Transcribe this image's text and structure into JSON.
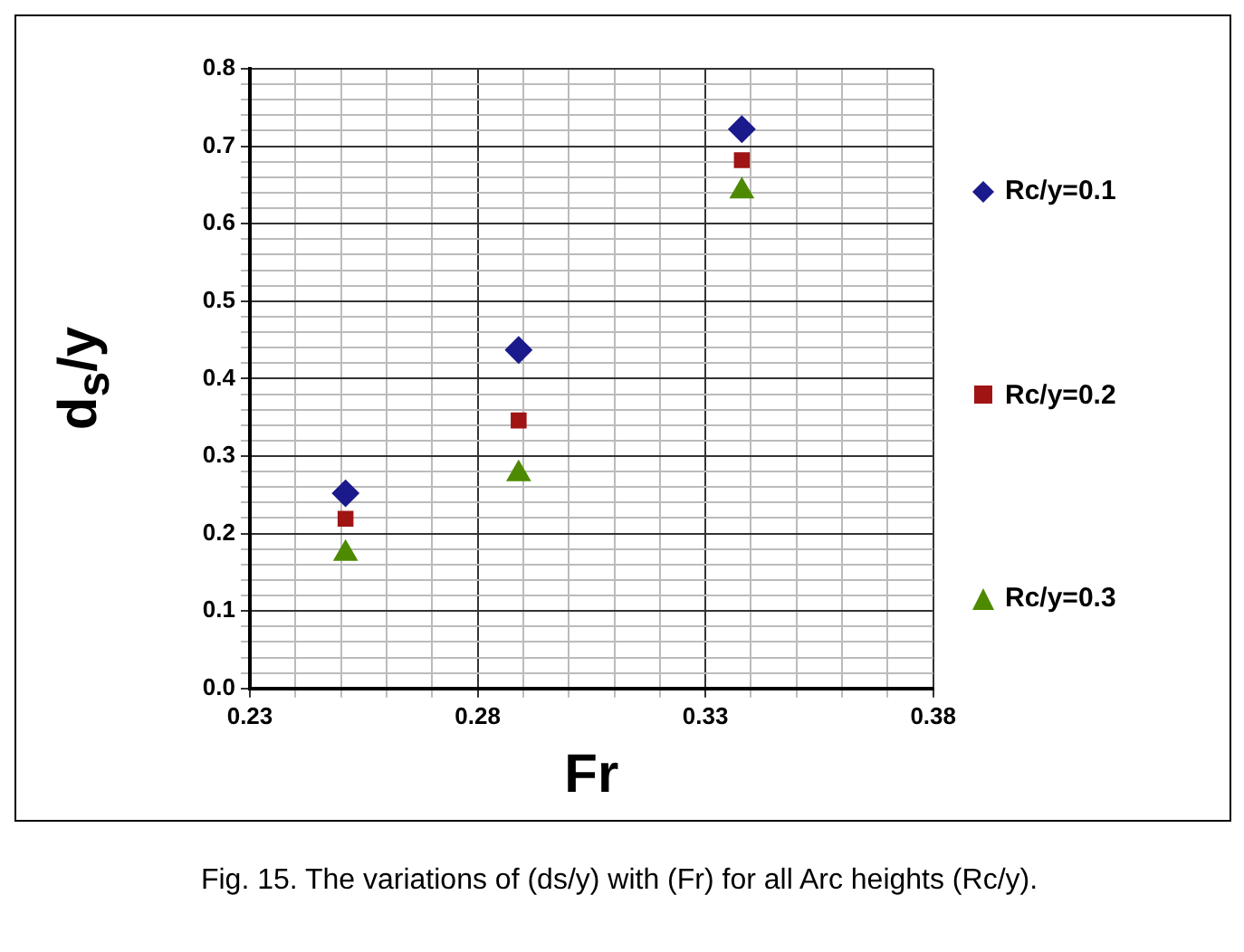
{
  "chart_data": {
    "type": "scatter",
    "xlabel": "Fr",
    "ylabel": "d$_{s}$/y",
    "x": [
      0.251,
      0.289,
      0.338
    ],
    "series": [
      {
        "name": "Rc/y=0.1",
        "color": "#1a1a8c",
        "marker": "diamond",
        "values": [
          0.252,
          0.437,
          0.722
        ]
      },
      {
        "name": "Rc/y=0.2",
        "color": "#a01414",
        "marker": "square",
        "values": [
          0.219,
          0.346,
          0.682
        ]
      },
      {
        "name": "Rc/y=0.3",
        "color": "#4e8a00",
        "marker": "triangle",
        "values": [
          0.174,
          0.277,
          0.642
        ]
      }
    ],
    "xlim": [
      0.23,
      0.38
    ],
    "xticks": [
      0.23,
      {
        "value": 0.24,
        "label": null
      },
      {
        "value": 0.25,
        "label": null
      },
      {
        "value": 0.26,
        "label": null
      },
      {
        "value": 0.27,
        "label": null
      },
      0.28,
      {
        "value": 0.29,
        "label": null
      },
      {
        "value": 0.3,
        "label": null
      },
      {
        "value": 0.31,
        "label": null
      },
      {
        "value": 0.32,
        "label": null
      },
      0.33,
      {
        "value": 0.34,
        "label": null
      },
      {
        "value": 0.35,
        "label": null
      },
      {
        "value": 0.36,
        "label": null
      },
      {
        "value": 0.37,
        "label": null
      },
      0.38
    ],
    "ylim": [
      0,
      0.8
    ],
    "yticks": [
      {
        "value": 0,
        "label": "0.0"
      },
      {
        "value": 0.02,
        "label": null
      },
      {
        "value": 0.04,
        "label": null
      },
      {
        "value": 0.06,
        "label": null
      },
      {
        "value": 0.08,
        "label": null
      },
      0.1,
      {
        "value": 0.12,
        "label": null
      },
      {
        "value": 0.14,
        "label": null
      },
      {
        "value": 0.16,
        "label": null
      },
      {
        "value": 0.18,
        "label": null
      },
      0.2,
      {
        "value": 0.22,
        "label": null
      },
      {
        "value": 0.24,
        "label": null
      },
      {
        "value": 0.26,
        "label": null
      },
      {
        "value": 0.28,
        "label": null
      },
      0.3,
      {
        "value": 0.32,
        "label": null
      },
      {
        "value": 0.34,
        "label": null
      },
      {
        "value": 0.36,
        "label": null
      },
      {
        "value": 0.38,
        "label": null
      },
      0.4,
      {
        "value": 0.42,
        "label": null
      },
      {
        "value": 0.44,
        "label": null
      },
      {
        "value": 0.46,
        "label": null
      },
      {
        "value": 0.48,
        "label": null
      },
      0.5,
      {
        "value": 0.52,
        "label": null
      },
      {
        "value": 0.54,
        "label": null
      },
      {
        "value": 0.56,
        "label": null
      },
      {
        "value": 0.58,
        "label": null
      },
      0.6,
      {
        "value": 0.62,
        "label": null
      },
      {
        "value": 0.64,
        "label": null
      },
      {
        "value": 0.66,
        "label": null
      },
      {
        "value": 0.68,
        "label": null
      },
      0.7,
      {
        "value": 0.72,
        "label": null
      },
      {
        "value": 0.74,
        "label": null
      },
      {
        "value": 0.76,
        "label": null
      },
      {
        "value": 0.78,
        "label": null
      },
      0.8
    ],
    "grid": true,
    "legend": "right",
    "annotations": [
      "Fig. 15. The variations of (ds/y) with (Fr) for all Arc heights (Rc/y)."
    ]
  }
}
